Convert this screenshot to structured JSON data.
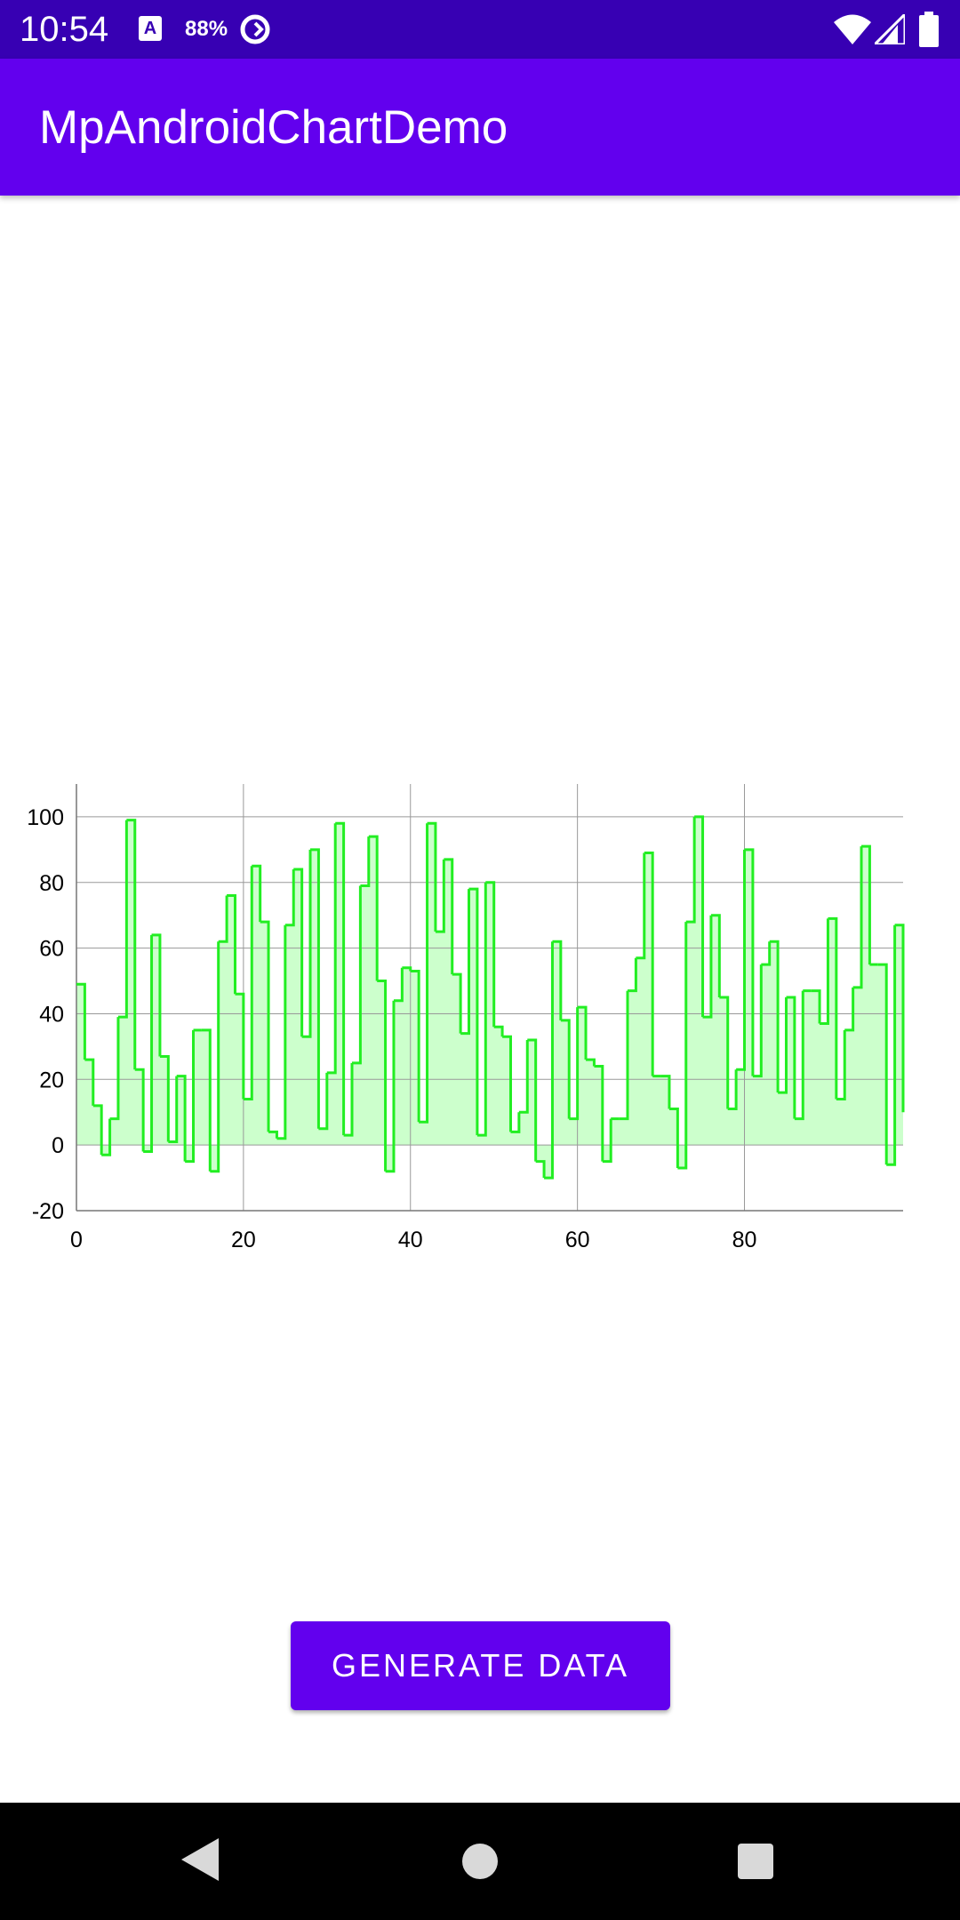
{
  "status_bar": {
    "time": "10:54",
    "a_icon_glyph": "A",
    "battery_percent": "88%",
    "icons": [
      "notification-a-icon",
      "sync-icon",
      "wifi-icon",
      "cell-signal-icon",
      "battery-icon"
    ]
  },
  "app_bar": {
    "title": "MpAndroidChartDemo"
  },
  "colors": {
    "status_bar": "#3700B3",
    "primary": "#6200EE",
    "series_line": "#22EE22",
    "series_fill": "#CCFFCC",
    "grid": "#999999"
  },
  "chart_data": {
    "type": "area",
    "step": true,
    "grid": true,
    "legend": "none",
    "title": "",
    "xlabel": "",
    "ylabel": "",
    "xlim": [
      0,
      99
    ],
    "ylim": [
      -20,
      110
    ],
    "x_ticks": [
      "0",
      "20",
      "40",
      "60",
      "80"
    ],
    "y_ticks": [
      "-20",
      "0",
      "20",
      "40",
      "60",
      "80",
      "100"
    ],
    "series": [
      {
        "values": [
          49,
          26,
          12,
          -3,
          8,
          39,
          99,
          23,
          -2,
          64,
          27,
          1,
          21,
          -5,
          35,
          35,
          -8,
          62,
          76,
          46,
          14,
          85,
          68,
          4,
          2,
          67,
          84,
          33,
          90,
          5,
          22,
          98,
          3,
          25,
          79,
          94,
          50,
          -8,
          44,
          54,
          53,
          7,
          98,
          65,
          87,
          52,
          34,
          78,
          3,
          80,
          36,
          33,
          4,
          10,
          32,
          -5,
          -10,
          62,
          38,
          8,
          42,
          26,
          24,
          -5,
          8,
          8,
          47,
          57,
          89,
          21,
          21,
          11,
          -7,
          68,
          100,
          39,
          70,
          45,
          11,
          23,
          90,
          21,
          55,
          62,
          16,
          45,
          8,
          47,
          47,
          37,
          69,
          14,
          35,
          48,
          91,
          55,
          55,
          -6,
          67,
          10
        ]
      }
    ]
  },
  "button": {
    "label": "GENERATE DATA"
  },
  "nav_bar": {
    "icons": [
      "back-icon",
      "home-icon",
      "recents-icon"
    ]
  }
}
